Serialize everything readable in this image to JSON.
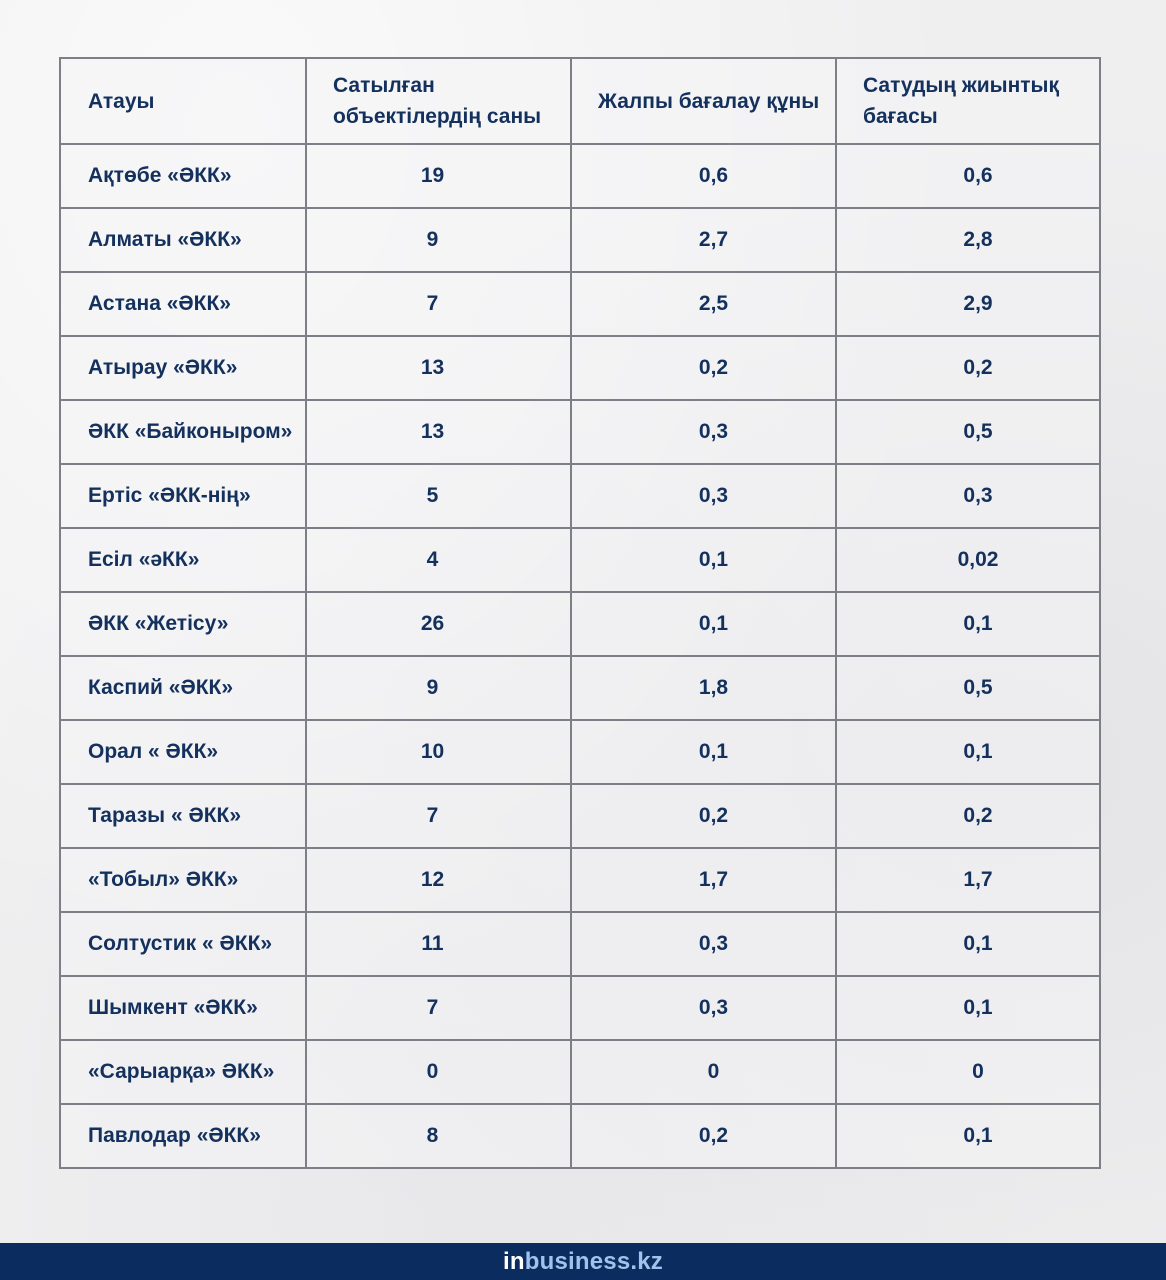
{
  "table": {
    "headers": [
      "Атауы",
      "Сатылған объектілердің саны",
      "Жалпы бағалау құны",
      "Сатудың жиынтық бағасы"
    ],
    "rows": [
      [
        "Ақтөбе «ӘКК»",
        "19",
        "0,6",
        "0,6"
      ],
      [
        "Алматы «ӘКК»",
        "9",
        "2,7",
        "2,8"
      ],
      [
        "Астана «ӘКК»",
        "7",
        "2,5",
        "2,9"
      ],
      [
        "Атырау «ӘКК»",
        "13",
        "0,2",
        "0,2"
      ],
      [
        "ӘКК «Байконыром»",
        "13",
        "0,3",
        "0,5"
      ],
      [
        "Ертіс «ӘКК-нің»",
        "5",
        "0,3",
        "0,3"
      ],
      [
        "Есіл «әКК»",
        "4",
        "0,1",
        "0,02"
      ],
      [
        "ӘКК «Жетісу»",
        "26",
        "0,1",
        "0,1"
      ],
      [
        "Каспий «ӘКК»",
        "9",
        "1,8",
        "0,5"
      ],
      [
        "Орал « ӘКК»",
        "10",
        "0,1",
        "0,1"
      ],
      [
        "Таразы « ӘКК»",
        "7",
        "0,2",
        "0,2"
      ],
      [
        "«Тобыл» ӘКК»",
        "12",
        "1,7",
        "1,7"
      ],
      [
        "Солтустик « ӘКК»",
        "11",
        "0,3",
        "0,1"
      ],
      [
        "Шымкент «ӘКК»",
        "7",
        "0,3",
        "0,1"
      ],
      [
        "«Сарыарқа» ӘКК»",
        "0",
        "0",
        "0"
      ],
      [
        "Павлодар «ӘКК»",
        "8",
        "0,2",
        "0,1"
      ]
    ]
  },
  "footer": {
    "brand_prefix": "in",
    "brand_rest": "business.kz"
  },
  "colors": {
    "text": "#14315e",
    "border": "#7d7f86",
    "footer_bg": "#0b2c5f",
    "brand_accent": "#9ec3ec"
  }
}
